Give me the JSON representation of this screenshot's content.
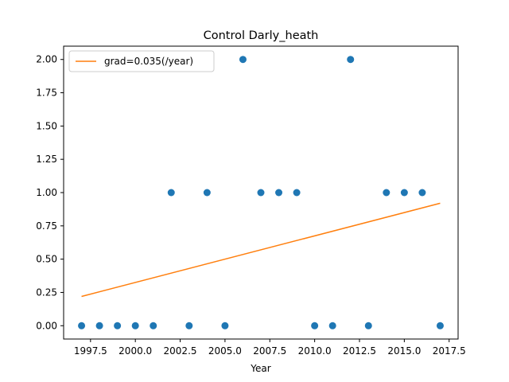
{
  "chart_data": {
    "type": "scatter",
    "title": "Control Darly_heath",
    "xlabel": "Year",
    "ylabel": "",
    "xlim": [
      1996.0,
      2018.0
    ],
    "ylim": [
      -0.1,
      2.1
    ],
    "xticks": [
      1997.5,
      2000.0,
      2002.5,
      2005.0,
      2007.5,
      2010.0,
      2012.5,
      2015.0,
      2017.5
    ],
    "xtick_labels": [
      "1997.5",
      "2000.0",
      "2002.5",
      "2005.0",
      "2007.5",
      "2010.0",
      "2012.5",
      "2015.0",
      "2017.5"
    ],
    "yticks": [
      0.0,
      0.25,
      0.5,
      0.75,
      1.0,
      1.25,
      1.5,
      1.75,
      2.0
    ],
    "ytick_labels": [
      "0.00",
      "0.25",
      "0.50",
      "0.75",
      "1.00",
      "1.25",
      "1.50",
      "1.75",
      "2.00"
    ],
    "grid": false,
    "legend_position": "top-left",
    "series": [
      {
        "kind": "scatter",
        "color": "#1f77b4",
        "x": [
          1997,
          1998,
          1999,
          2000,
          2001,
          2002,
          2003,
          2004,
          2005,
          2006,
          2007,
          2008,
          2009,
          2010,
          2011,
          2012,
          2013,
          2014,
          2015,
          2016,
          2017
        ],
        "y": [
          0,
          0,
          0,
          0,
          0,
          1,
          0,
          1,
          0,
          2,
          1,
          1,
          1,
          0,
          0,
          2,
          0,
          1,
          1,
          1,
          0
        ]
      },
      {
        "kind": "line",
        "name": "grad=0.035(/year)",
        "color": "#ff7f0e",
        "x": [
          1997,
          2017
        ],
        "y": [
          0.22,
          0.92
        ]
      }
    ]
  }
}
